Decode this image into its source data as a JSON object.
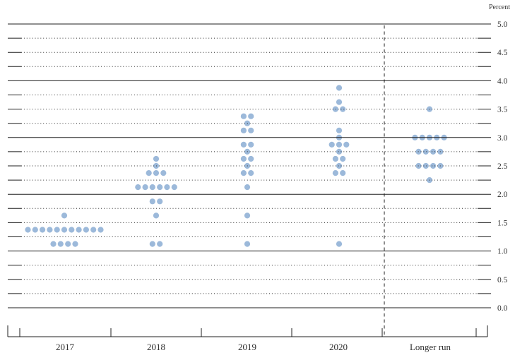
{
  "chart_data": {
    "type": "scatter",
    "subtype": "fomc-dot-plot",
    "title": "",
    "unit_label": "Percent",
    "legend": null,
    "grid": "solid lines at integer percents, dotted lines at quarter percents",
    "categories": [
      "2017",
      "2018",
      "2019",
      "2020",
      "Longer run"
    ],
    "separator_after_category": "2020",
    "y_axis": {
      "min": 0.0,
      "max": 5.0,
      "grid_step": 0.25,
      "label_step": 0.5,
      "tick_labels": [
        "5.0",
        "4.5",
        "4.0",
        "3.5",
        "3.0",
        "2.5",
        "2.0",
        "1.5",
        "1.0",
        "0.5",
        "0.0"
      ]
    },
    "series": [
      {
        "category": "2017",
        "dots": [
          {
            "rate": 1.625,
            "count": 1
          },
          {
            "rate": 1.375,
            "count": 11
          },
          {
            "rate": 1.125,
            "count": 4
          }
        ]
      },
      {
        "category": "2018",
        "dots": [
          {
            "rate": 2.625,
            "count": 1
          },
          {
            "rate": 2.5,
            "count": 1
          },
          {
            "rate": 2.375,
            "count": 3
          },
          {
            "rate": 2.125,
            "count": 6
          },
          {
            "rate": 1.875,
            "count": 2
          },
          {
            "rate": 1.625,
            "count": 1
          },
          {
            "rate": 1.125,
            "count": 2
          }
        ]
      },
      {
        "category": "2019",
        "dots": [
          {
            "rate": 3.375,
            "count": 2
          },
          {
            "rate": 3.25,
            "count": 1
          },
          {
            "rate": 3.125,
            "count": 2
          },
          {
            "rate": 2.875,
            "count": 2
          },
          {
            "rate": 2.75,
            "count": 1
          },
          {
            "rate": 2.625,
            "count": 2
          },
          {
            "rate": 2.5,
            "count": 1
          },
          {
            "rate": 2.375,
            "count": 2
          },
          {
            "rate": 2.125,
            "count": 1
          },
          {
            "rate": 1.625,
            "count": 1
          },
          {
            "rate": 1.125,
            "count": 1
          }
        ]
      },
      {
        "category": "2020",
        "dots": [
          {
            "rate": 3.875,
            "count": 1
          },
          {
            "rate": 3.625,
            "count": 1
          },
          {
            "rate": 3.5,
            "count": 2
          },
          {
            "rate": 3.125,
            "count": 1
          },
          {
            "rate": 3.0,
            "count": 1
          },
          {
            "rate": 2.875,
            "count": 3
          },
          {
            "rate": 2.75,
            "count": 1
          },
          {
            "rate": 2.625,
            "count": 2
          },
          {
            "rate": 2.5,
            "count": 1
          },
          {
            "rate": 2.375,
            "count": 2
          },
          {
            "rate": 1.125,
            "count": 1
          }
        ]
      },
      {
        "category": "Longer run",
        "dots": [
          {
            "rate": 3.5,
            "count": 1
          },
          {
            "rate": 3.0,
            "count": 5
          },
          {
            "rate": 2.75,
            "count": 4
          },
          {
            "rate": 2.5,
            "count": 4
          },
          {
            "rate": 2.25,
            "count": 1
          }
        ]
      }
    ],
    "colors": {
      "dot": "#9cb9da",
      "grid_solid": "#1f1f1f",
      "grid_dotted": "#2e2e2e",
      "text": "#2f2f2f",
      "separator": "#1f1f1f"
    }
  }
}
